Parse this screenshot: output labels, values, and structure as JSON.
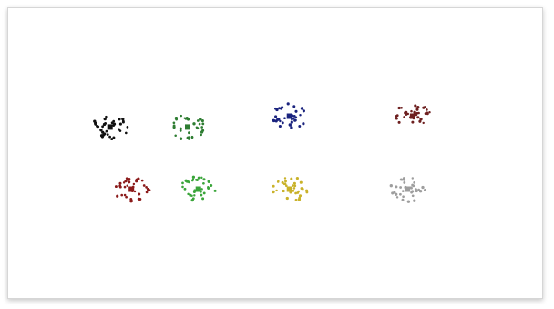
{
  "chart_data": {
    "type": "scatter",
    "title": "",
    "xlabel": "",
    "ylabel": "",
    "grid": false,
    "legend": "none",
    "xlim": [
      0,
      10
    ],
    "ylim": [
      0,
      5.4
    ],
    "clusters": [
      {
        "color": "#111111",
        "center": [
          1.9,
          3.2
        ]
      },
      {
        "color": "#2e7d32",
        "center": [
          3.35,
          3.2
        ]
      },
      {
        "color": "#1a237e",
        "center": [
          5.25,
          3.4
        ]
      },
      {
        "color": "#6d1f1f",
        "center": [
          7.55,
          3.4
        ]
      },
      {
        "color": "#8b1a1a",
        "center": [
          2.3,
          2.05
        ]
      },
      {
        "color": "#3aa53a",
        "center": [
          3.55,
          2.05
        ]
      },
      {
        "color": "#c9b22a",
        "center": [
          5.25,
          2.05
        ]
      },
      {
        "color": "#9e9e9e",
        "center": [
          7.45,
          2.05
        ]
      }
    ]
  }
}
